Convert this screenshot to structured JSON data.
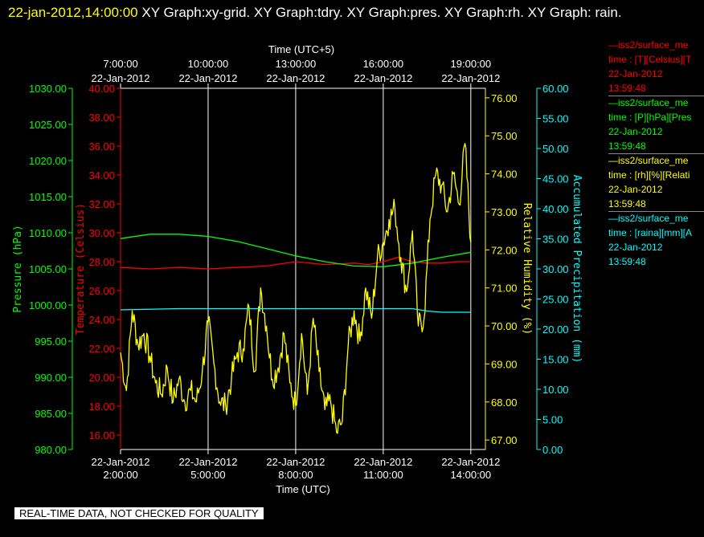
{
  "header": {
    "datetime": "22-jan-2012,14:00:00",
    "text": "  XY Graph:xy-grid.  XY Graph:tdry.  XY Graph:pres.  XY Graph:rh.  XY Graph: rain."
  },
  "quality_banner": "REAL-TIME DATA, NOT CHECKED FOR QUALITY",
  "legend": [
    {
      "line1": "iss2/surface_me",
      "line2": "time : [T][Celsius][T",
      "date": "22-Jan-2012",
      "time": "13:59:48",
      "color": "#ff0000"
    },
    {
      "line1": "iss2/surface_me",
      "line2": "time : [P][hPa][Pres",
      "date": "22-Jan-2012",
      "time": "13:59:48",
      "color": "#00ff00"
    },
    {
      "line1": "iss2/surface_me",
      "line2": "time : [rh][%][Relati",
      "date": "22-Jan-2012",
      "time": "13:59:48",
      "color": "#ffff00"
    },
    {
      "line1": "iss2/surface_me",
      "line2": "time : [raina][mm][A",
      "date": "22-Jan-2012",
      "time": "13:59:48",
      "color": "#00ffff"
    }
  ],
  "chart_data": {
    "type": "line",
    "title": "",
    "xlabel": "Time (UTC)",
    "xlabel_top": "Time (UTC+5)",
    "x_ticks_bottom": [
      {
        "date": "22-Jan-2012",
        "time": "2:00:00"
      },
      {
        "date": "22-Jan-2012",
        "time": "5:00:00"
      },
      {
        "date": "22-Jan-2012",
        "time": "8:00:00"
      },
      {
        "date": "22-Jan-2012",
        "time": "11:00:00"
      },
      {
        "date": "22-Jan-2012",
        "time": "14:00:00"
      }
    ],
    "x_ticks_top": [
      {
        "time": "7:00:00",
        "date": "22-Jan-2012"
      },
      {
        "time": "10:00:00",
        "date": "22-Jan-2012"
      },
      {
        "time": "13:00:00",
        "date": "22-Jan-2012"
      },
      {
        "time": "16:00:00",
        "date": "22-Jan-2012"
      },
      {
        "time": "19:00:00",
        "date": "22-Jan-2012"
      }
    ],
    "grid": "vertical",
    "axes": {
      "pressure": {
        "label": "Pressure (hPa)",
        "color": "#00ff00",
        "range": [
          980,
          1030
        ],
        "ticks": [
          "980.00",
          "985.00",
          "990.00",
          "995.00",
          "1000.00",
          "1005.00",
          "1010.00",
          "1015.00",
          "1020.00",
          "1025.00",
          "1030.00"
        ]
      },
      "temperature": {
        "label": "Temperature (Celsius)",
        "color": "#ff0000",
        "range": [
          15,
          40
        ],
        "ticks": [
          "16.00",
          "18.00",
          "20.00",
          "22.00",
          "24.00",
          "26.00",
          "28.00",
          "30.00",
          "32.00",
          "34.00",
          "36.00",
          "38.00",
          "40.00"
        ]
      },
      "humidity": {
        "label": "Relative Humidity (%)",
        "color": "#ffff00",
        "range": [
          66.75,
          76.25
        ],
        "ticks": [
          "67.00",
          "68.00",
          "69.00",
          "70.00",
          "71.00",
          "72.00",
          "73.00",
          "74.00",
          "75.00",
          "76.00"
        ]
      },
      "precip": {
        "label": "Accumulated Precipitation (mm)",
        "color": "#00ffff",
        "range": [
          0,
          60
        ],
        "ticks": [
          "0.00",
          "5.00",
          "10.00",
          "15.00",
          "20.00",
          "25.00",
          "30.00",
          "35.00",
          "40.00",
          "45.00",
          "50.00",
          "55.00",
          "60.00"
        ]
      }
    },
    "series": [
      {
        "axis": "temperature",
        "color": "#ff0000",
        "x": [
          2.0,
          3.0,
          4.0,
          5.0,
          6.0,
          7.0,
          8.0,
          9.0,
          10.0,
          10.5,
          11.0,
          11.5,
          12.0,
          12.5,
          13.0,
          13.5,
          14.0
        ],
        "y": [
          27.6,
          27.5,
          27.6,
          27.5,
          27.6,
          27.7,
          28.0,
          27.8,
          27.9,
          27.8,
          28.0,
          28.3,
          28.0,
          27.9,
          27.9,
          28.0,
          28.0
        ]
      },
      {
        "axis": "pressure",
        "color": "#00ff00",
        "x": [
          2.0,
          3.0,
          4.0,
          5.0,
          6.0,
          7.0,
          8.0,
          9.0,
          10.0,
          11.0,
          12.0,
          13.0,
          14.0
        ],
        "y": [
          1009.2,
          1009.8,
          1009.8,
          1009.5,
          1008.8,
          1007.8,
          1006.8,
          1006.0,
          1005.4,
          1005.3,
          1005.8,
          1006.6,
          1007.3
        ]
      },
      {
        "axis": "humidity",
        "color": "#ffff00",
        "x": [
          2.0,
          2.2,
          2.4,
          2.6,
          2.8,
          3.0,
          3.2,
          3.4,
          3.6,
          3.8,
          4.0,
          4.2,
          4.4,
          4.6,
          4.8,
          5.0,
          5.2,
          5.4,
          5.6,
          5.8,
          6.0,
          6.2,
          6.4,
          6.6,
          6.8,
          7.0,
          7.2,
          7.4,
          7.6,
          7.8,
          8.0,
          8.2,
          8.4,
          8.6,
          8.8,
          9.0,
          9.2,
          9.4,
          9.6,
          9.8,
          10.0,
          10.2,
          10.4,
          10.6,
          10.8,
          11.0,
          11.2,
          11.4,
          11.6,
          11.8,
          12.0,
          12.2,
          12.4,
          12.6,
          12.8,
          13.0,
          13.2,
          13.4,
          13.6,
          13.8,
          14.0
        ],
        "y": [
          69.3,
          68.3,
          70.4,
          69.5,
          69.8,
          69.2,
          68.5,
          68.2,
          68.9,
          68.0,
          68.6,
          68.0,
          68.3,
          68.0,
          68.8,
          70.1,
          69.0,
          68.0,
          67.9,
          68.6,
          69.3,
          69.4,
          70.5,
          68.8,
          71.0,
          70.0,
          68.6,
          68.9,
          69.8,
          68.5,
          67.9,
          69.8,
          68.2,
          70.2,
          68.8,
          67.8,
          68.0,
          67.2,
          67.5,
          69.5,
          70.4,
          69.6,
          71.0,
          70.2,
          71.8,
          72.2,
          72.8,
          73.1,
          71.8,
          70.9,
          72.5,
          70.0,
          70.2,
          72.8,
          74.0,
          73.7,
          73.0,
          74.0,
          73.2,
          74.8,
          72.2
        ]
      },
      {
        "axis": "precip",
        "color": "#00ffff",
        "x": [
          2.0,
          4.0,
          6.0,
          8.0,
          10.0,
          11.0,
          12.0,
          12.5,
          13.0,
          14.0
        ],
        "y": [
          23.2,
          23.4,
          23.4,
          23.4,
          23.4,
          23.4,
          23.4,
          23.0,
          22.8,
          22.8
        ]
      }
    ]
  }
}
